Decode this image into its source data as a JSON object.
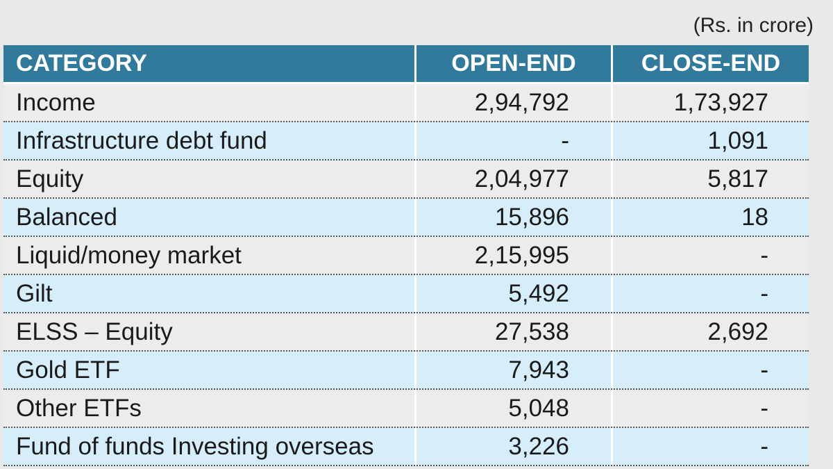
{
  "note": "(Rs. in crore)",
  "table": {
    "header": [
      "CATEGORY",
      "OPEN-END",
      "CLOSE-END"
    ],
    "rows": [
      [
        "Income",
        "2,94,792",
        "1,73,927"
      ],
      [
        "Infrastructure debt fund",
        "-",
        "1,091"
      ],
      [
        "Equity",
        "2,04,977",
        "5,817"
      ],
      [
        "Balanced",
        "15,896",
        "18"
      ],
      [
        "Liquid/money market",
        "2,15,995",
        "-"
      ],
      [
        "Gilt",
        "5,492",
        "-"
      ],
      [
        "ELSS – Equity",
        "27,538",
        "2,692"
      ],
      [
        "Gold ETF",
        "7,943",
        "-"
      ],
      [
        "Other ETFs",
        "5,048",
        "-"
      ],
      [
        "Fund of funds Investing overseas",
        "3,226",
        "-"
      ]
    ]
  }
}
